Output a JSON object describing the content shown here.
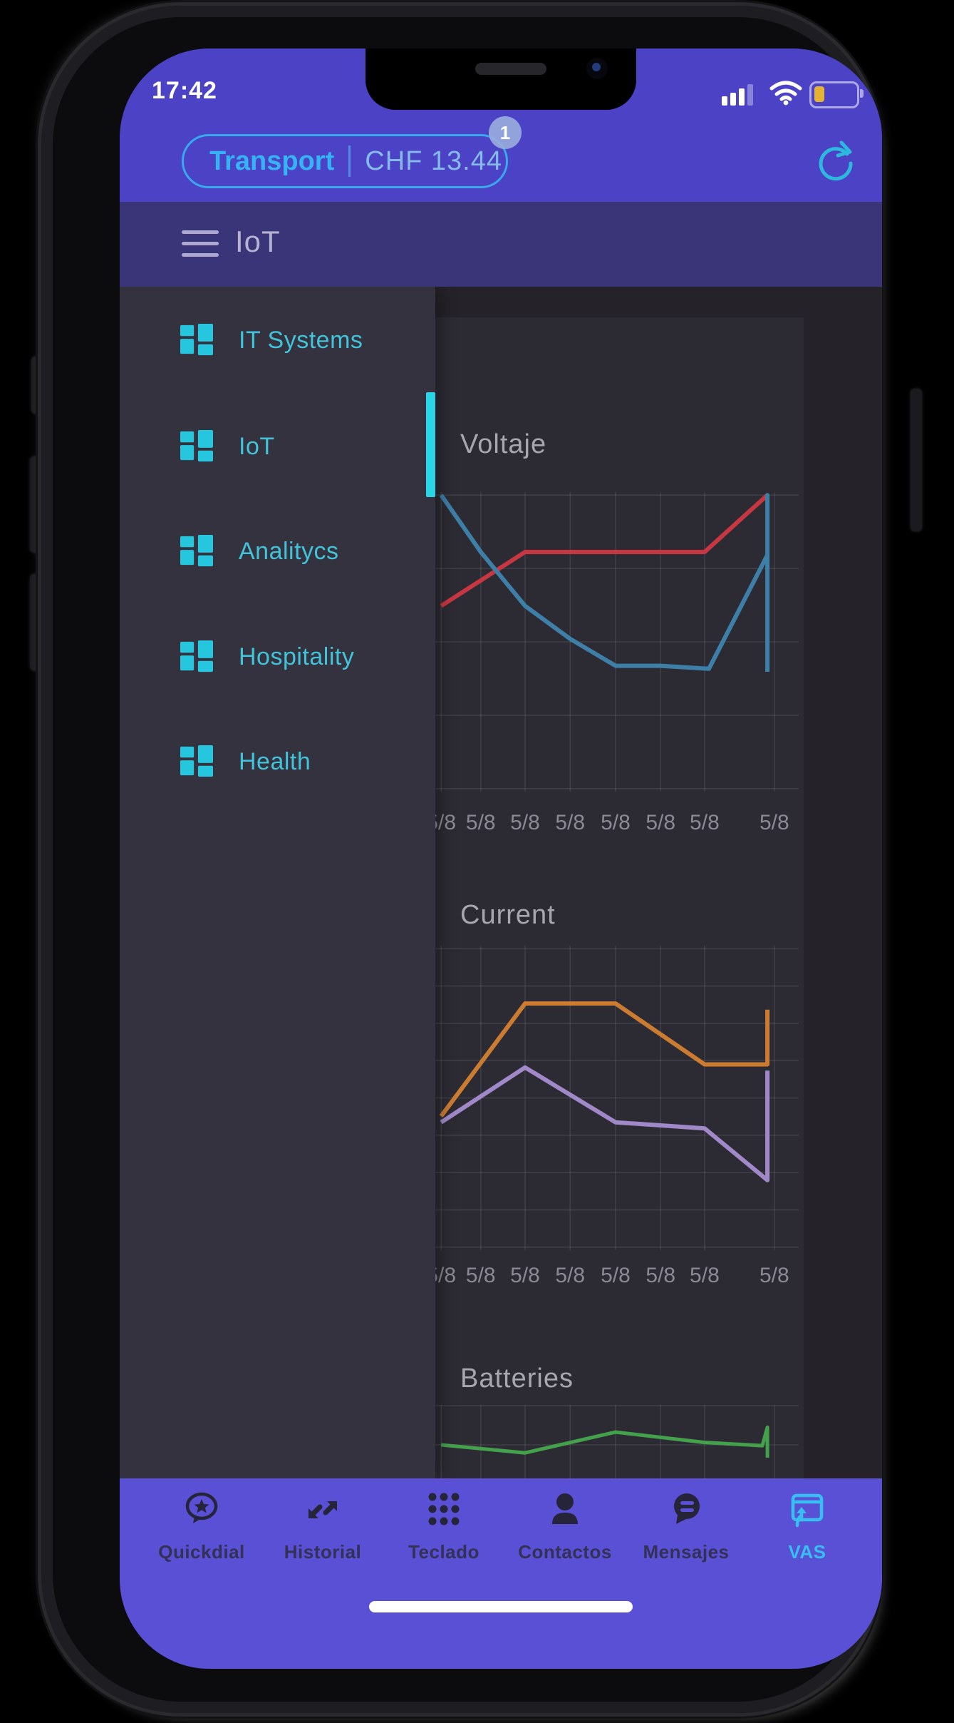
{
  "device": {
    "time": "17:42"
  },
  "status_icons": {
    "signal": "signal-bars-icon",
    "wifi": "wifi-icon",
    "battery": "battery-low-icon",
    "battery_state": "low-yellow"
  },
  "top_bar": {
    "account_label": "Transport",
    "balance": "CHF 13.44",
    "notification_count": "1",
    "refresh": "refresh-icon"
  },
  "app_header": {
    "menu": "hamburger-menu-icon",
    "title": "IoT"
  },
  "drawer": {
    "items": [
      {
        "icon": "dashboard-tiles-icon",
        "label": "IT Systems",
        "active": false
      },
      {
        "icon": "dashboard-tiles-icon",
        "label": "IoT",
        "active": true
      },
      {
        "icon": "dashboard-tiles-icon",
        "label": "Analitycs",
        "active": false
      },
      {
        "icon": "dashboard-tiles-icon",
        "label": "Hospitality",
        "active": false
      },
      {
        "icon": "dashboard-tiles-icon",
        "label": "Health",
        "active": false
      }
    ]
  },
  "chart_data": [
    {
      "type": "line",
      "title": "Voltaje",
      "xlabel": "",
      "ylabel": "",
      "ylim": [
        0,
        100
      ],
      "y_axis": "unlabeled relative scale (percent of plot height)",
      "grid": true,
      "h_gridlines": 5,
      "legend": "none",
      "tick_positions": [
        0.016,
        0.125,
        0.247,
        0.371,
        0.496,
        0.62,
        0.741,
        0.933
      ],
      "x_tick_labels": [
        "5/8",
        "5/8",
        "5/8",
        "5/8",
        "5/8",
        "5/8",
        "5/8",
        "5/8"
      ],
      "series": [
        {
          "name": "voltage-red",
          "color": "#c63742",
          "points": [
            [
              0.016,
              62
            ],
            [
              0.247,
              80
            ],
            [
              0.741,
              80
            ],
            [
              0.914,
              99
            ]
          ]
        },
        {
          "name": "voltage-blue",
          "color": "#3e7fa8",
          "points": [
            [
              0.016,
              99
            ],
            [
              0.125,
              80
            ],
            [
              0.247,
              62
            ],
            [
              0.371,
              51
            ],
            [
              0.496,
              42
            ],
            [
              0.62,
              42
            ],
            [
              0.753,
              41
            ],
            [
              0.914,
              79
            ],
            [
              0.914,
              99
            ],
            [
              0.914,
              40
            ]
          ]
        }
      ]
    },
    {
      "type": "line",
      "title": "Current",
      "xlabel": "",
      "ylabel": "",
      "ylim": [
        0,
        100
      ],
      "y_axis": "unlabeled relative scale (percent of plot height)",
      "grid": true,
      "h_gridlines": 9,
      "legend": "none",
      "tick_positions": [
        0.016,
        0.125,
        0.247,
        0.371,
        0.496,
        0.62,
        0.741,
        0.933
      ],
      "x_tick_labels": [
        "5/8",
        "5/8",
        "5/8",
        "5/8",
        "5/8",
        "5/8",
        "5/8",
        "5/8"
      ],
      "series": [
        {
          "name": "current-orange",
          "color": "#cb7c31",
          "points": [
            [
              0.016,
              44
            ],
            [
              0.247,
              81
            ],
            [
              0.496,
              81
            ],
            [
              0.741,
              61
            ],
            [
              0.914,
              61
            ],
            [
              0.914,
              79
            ]
          ]
        },
        {
          "name": "current-purple",
          "color": "#a189c9",
          "points": [
            [
              0.016,
              42
            ],
            [
              0.247,
              60
            ],
            [
              0.496,
              42
            ],
            [
              0.741,
              40
            ],
            [
              0.914,
              23
            ],
            [
              0.914,
              59
            ]
          ]
        }
      ]
    },
    {
      "type": "line",
      "title": "Batteries",
      "xlabel": "",
      "ylabel": "",
      "ylim": [
        0,
        100
      ],
      "y_axis": "unlabeled relative scale (percent of plot height); bottom of plot clipped by nav bar",
      "grid": true,
      "h_gridlines": 3,
      "legend": "none",
      "tick_positions": [
        0.016,
        0.125,
        0.247,
        0.371,
        0.496,
        0.62,
        0.741,
        0.933
      ],
      "x_tick_labels": [],
      "series": [
        {
          "name": "batteries-green",
          "color": "#44a14b",
          "points": [
            [
              0.016,
              50
            ],
            [
              0.247,
              40
            ],
            [
              0.496,
              66
            ],
            [
              0.741,
              53
            ],
            [
              0.9,
              49
            ],
            [
              0.914,
              72
            ],
            [
              0.914,
              34
            ]
          ]
        }
      ]
    }
  ],
  "nav_bar": {
    "items": [
      {
        "icon": "quickdial-bubble-star-icon",
        "label": "Quickdial",
        "active": false
      },
      {
        "icon": "history-arrows-icon",
        "label": "Historial",
        "active": false
      },
      {
        "icon": "keypad-dots-icon",
        "label": "Teclado",
        "active": false
      },
      {
        "icon": "contacts-person-icon",
        "label": "Contactos",
        "active": false
      },
      {
        "icon": "messages-bubble-icon",
        "label": "Mensajes",
        "active": false
      },
      {
        "icon": "vas-window-arrow-icon",
        "label": "VAS",
        "active": true
      }
    ]
  },
  "colors": {
    "status_bar": "#4b42c6",
    "app_header": "#3a3478",
    "nav_bar": "#5950d6",
    "content_bg": "#252329",
    "card_bg": "#2c2b34",
    "drawer_bg": "#35323f",
    "accent_cyan": "#2bd5e8",
    "drawer_text": "#41c3da",
    "pill_border": "#38a9ea",
    "pill_label": "#36b3f4",
    "pill_value": "#86bae9",
    "badge_bg": "#9aaede",
    "battery_fill": "#e5b231",
    "chart_title_text": "#a7a7b0",
    "tick_text": "#8a8a94",
    "nav_active": "#38bff2",
    "gridline": "rgba(255,255,255,0.09)"
  }
}
